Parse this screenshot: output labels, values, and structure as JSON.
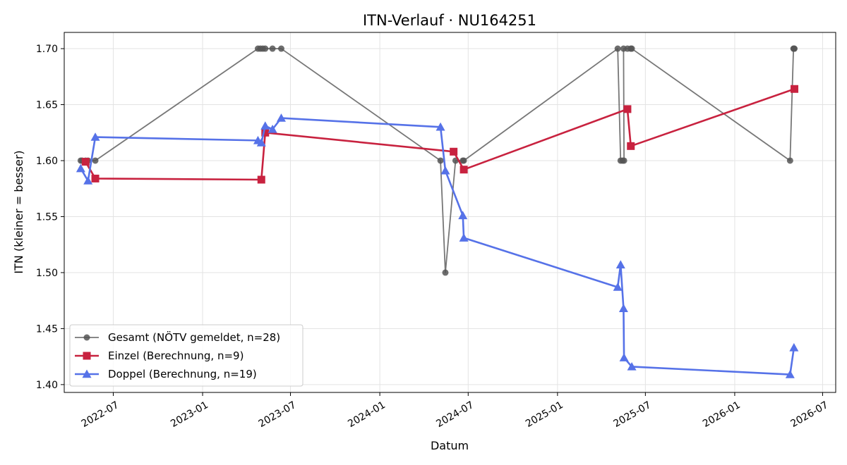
{
  "chart_data": {
    "type": "line",
    "title": "ITN-Verlauf · NU164251",
    "xlabel": "Datum",
    "ylabel": "ITN  (kleiner = besser)",
    "x_type": "date",
    "xlim": [
      "2022-03-22",
      "2026-07-28"
    ],
    "ylim": [
      1.393,
      1.7145
    ],
    "x_ticks": [
      {
        "date": "2022-07-01",
        "label": "2022-07"
      },
      {
        "date": "2023-01-01",
        "label": "2023-01"
      },
      {
        "date": "2023-07-01",
        "label": "2023-07"
      },
      {
        "date": "2024-01-01",
        "label": "2024-01"
      },
      {
        "date": "2024-07-01",
        "label": "2024-07"
      },
      {
        "date": "2025-01-01",
        "label": "2025-01"
      },
      {
        "date": "2025-07-01",
        "label": "2025-07"
      },
      {
        "date": "2026-01-01",
        "label": "2026-01"
      },
      {
        "date": "2026-07-01",
        "label": "2026-07"
      }
    ],
    "y_ticks": [
      {
        "value": 1.4,
        "label": "1.40"
      },
      {
        "value": 1.45,
        "label": "1.45"
      },
      {
        "value": 1.5,
        "label": "1.50"
      },
      {
        "value": 1.55,
        "label": "1.55"
      },
      {
        "value": 1.6,
        "label": "1.60"
      },
      {
        "value": 1.65,
        "label": "1.65"
      },
      {
        "value": 1.7,
        "label": "1.70"
      }
    ],
    "grid": true,
    "legend_position": "lower-left",
    "series": [
      {
        "name": "Gesamt (NÖTV gemeldet, n=28)",
        "color": "#555555",
        "marker": "circle",
        "points": [
          {
            "x": "2022-04-25",
            "y": 1.6
          },
          {
            "x": "2022-04-28",
            "y": 1.6
          },
          {
            "x": "2022-05-05",
            "y": 1.6
          },
          {
            "x": "2022-05-10",
            "y": 1.6
          },
          {
            "x": "2022-05-25",
            "y": 1.6
          },
          {
            "x": "2023-04-25",
            "y": 1.7
          },
          {
            "x": "2023-04-30",
            "y": 1.7
          },
          {
            "x": "2023-05-05",
            "y": 1.7
          },
          {
            "x": "2023-05-10",
            "y": 1.7
          },
          {
            "x": "2023-05-25",
            "y": 1.7
          },
          {
            "x": "2023-06-12",
            "y": 1.7
          },
          {
            "x": "2024-05-05",
            "y": 1.6
          },
          {
            "x": "2024-05-15",
            "y": 1.5
          },
          {
            "x": "2024-06-05",
            "y": 1.6
          },
          {
            "x": "2024-06-20",
            "y": 1.6
          },
          {
            "x": "2024-06-22",
            "y": 1.6
          },
          {
            "x": "2025-05-05",
            "y": 1.7
          },
          {
            "x": "2025-05-11",
            "y": 1.6
          },
          {
            "x": "2025-05-15",
            "y": 1.6
          },
          {
            "x": "2025-05-18",
            "y": 1.6
          },
          {
            "x": "2025-05-17",
            "y": 1.7
          },
          {
            "x": "2025-05-25",
            "y": 1.7
          },
          {
            "x": "2025-06-01",
            "y": 1.7
          },
          {
            "x": "2025-06-03",
            "y": 1.7
          },
          {
            "x": "2026-04-25",
            "y": 1.6
          },
          {
            "x": "2026-05-02",
            "y": 1.7
          },
          {
            "x": "2026-05-03",
            "y": 1.7
          },
          {
            "x": "2026-05-04",
            "y": 1.7
          }
        ]
      },
      {
        "name": "Einzel (Berechnung, n=9)",
        "color": "#c8223f",
        "marker": "square",
        "points": [
          {
            "x": "2022-05-05",
            "y": 1.599
          },
          {
            "x": "2022-05-25",
            "y": 1.584
          },
          {
            "x": "2023-05-02",
            "y": 1.583
          },
          {
            "x": "2023-05-10",
            "y": 1.625
          },
          {
            "x": "2024-06-01",
            "y": 1.608
          },
          {
            "x": "2024-06-22",
            "y": 1.592
          },
          {
            "x": "2025-05-25",
            "y": 1.646
          },
          {
            "x": "2025-06-01",
            "y": 1.613
          },
          {
            "x": "2026-05-04",
            "y": 1.664
          }
        ]
      },
      {
        "name": "Doppel (Berechnung, n=19)",
        "color": "#5672e8",
        "marker": "triangle",
        "points": [
          {
            "x": "2022-04-25",
            "y": 1.593
          },
          {
            "x": "2022-05-10",
            "y": 1.582
          },
          {
            "x": "2022-05-25",
            "y": 1.621
          },
          {
            "x": "2023-04-25",
            "y": 1.618
          },
          {
            "x": "2023-05-02",
            "y": 1.616
          },
          {
            "x": "2023-05-10",
            "y": 1.631
          },
          {
            "x": "2023-05-25",
            "y": 1.628
          },
          {
            "x": "2023-06-12",
            "y": 1.638
          },
          {
            "x": "2024-05-05",
            "y": 1.63
          },
          {
            "x": "2024-05-15",
            "y": 1.591
          },
          {
            "x": "2024-06-20",
            "y": 1.551
          },
          {
            "x": "2024-06-22",
            "y": 1.531
          },
          {
            "x": "2025-05-05",
            "y": 1.487
          },
          {
            "x": "2025-05-11",
            "y": 1.507
          },
          {
            "x": "2025-05-17",
            "y": 1.468
          },
          {
            "x": "2025-05-18",
            "y": 1.424
          },
          {
            "x": "2025-06-03",
            "y": 1.416
          },
          {
            "x": "2026-04-25",
            "y": 1.409
          },
          {
            "x": "2026-05-03",
            "y": 1.433
          }
        ]
      }
    ]
  }
}
